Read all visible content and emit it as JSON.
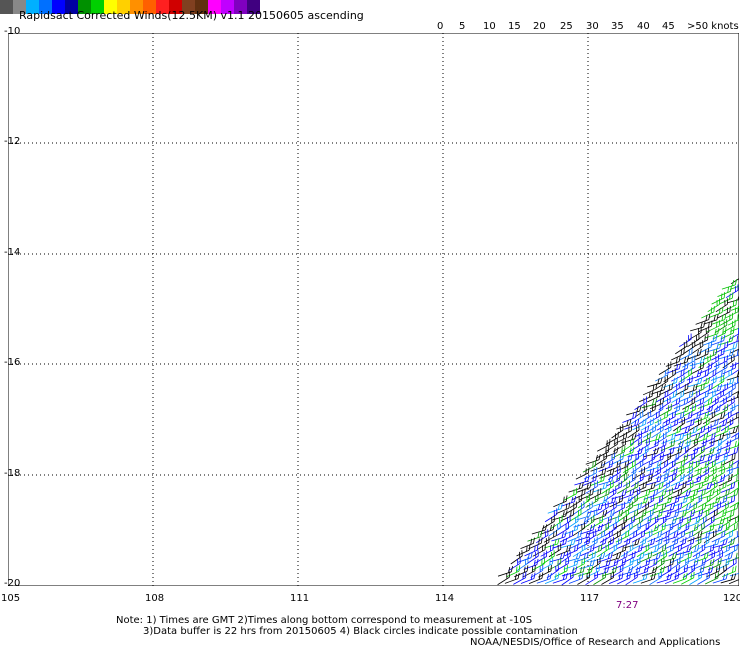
{
  "title": "Rapidsact Corrected Winds(12.5KM) v1.1 20150605 ascending",
  "scale": {
    "colors": [
      "#555555",
      "#888888",
      "#00b0ff",
      "#0070ff",
      "#0000ff",
      "#0000a0",
      "#009000",
      "#00d000",
      "#ffff00",
      "#ffd000",
      "#ff9000",
      "#ff6000",
      "#ff2020",
      "#d00000",
      "#804020",
      "#603010",
      "#ff00ff",
      "#c000ff",
      "#8000c0",
      "#400080"
    ],
    "labels": [
      {
        "v": "0",
        "x": 437
      },
      {
        "v": "5",
        "x": 459
      },
      {
        "v": "10",
        "x": 483
      },
      {
        "v": "15",
        "x": 508
      },
      {
        "v": "20",
        "x": 533
      },
      {
        "v": "25",
        "x": 560
      },
      {
        "v": "30",
        "x": 586
      },
      {
        "v": "35",
        "x": 611
      },
      {
        "v": "40",
        "x": 637
      },
      {
        "v": "45",
        "x": 662
      },
      {
        "v": ">50 knots",
        "x": 687
      }
    ]
  },
  "axes": {
    "lon_labels": [
      "105",
      "108",
      "111",
      "114",
      "117",
      "120"
    ],
    "lat_labels": [
      "-10",
      "-12",
      "-14",
      "-16",
      "-18",
      "-20"
    ]
  },
  "time_label": "7:27",
  "notes": {
    "line1": "Note: 1) Times are GMT 2)Times along bottom correspond to measurement at -10S",
    "line2": "3)Data buffer is 22 hrs from 20150605 4) Black circles indicate possible contamination",
    "line3": "NOAA/NESDIS/Office of Research and Applications"
  }
}
